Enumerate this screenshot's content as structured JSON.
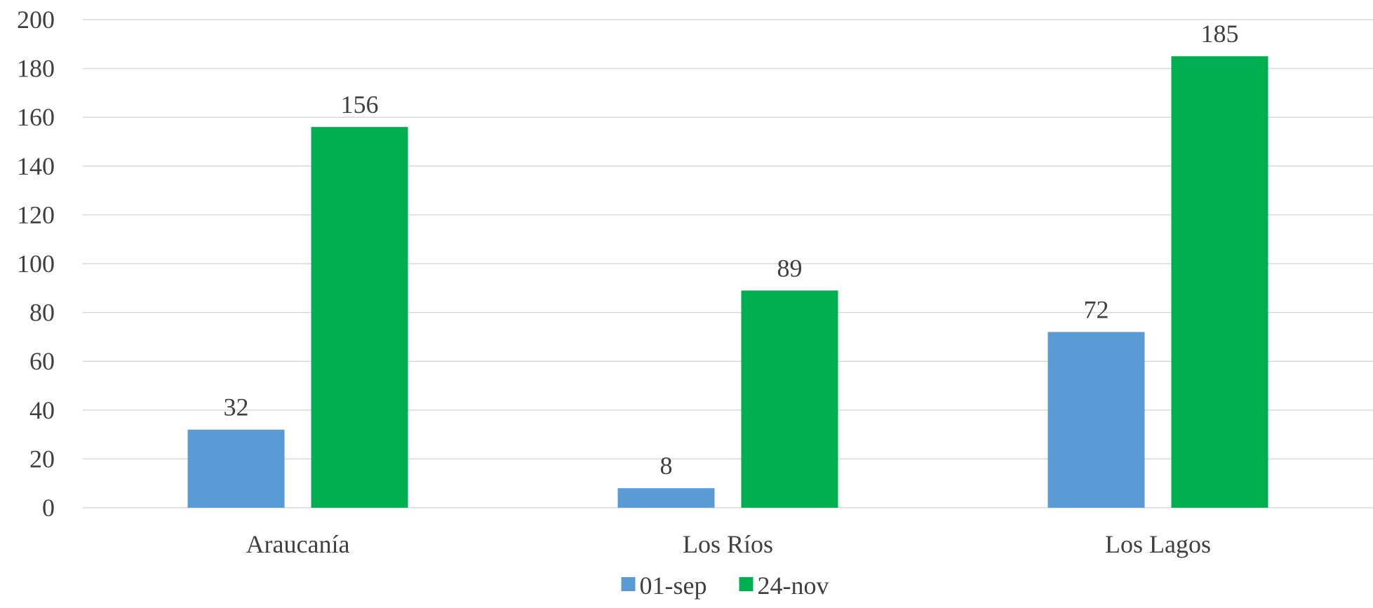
{
  "chart_data": {
    "type": "bar",
    "categories": [
      "Araucanía",
      "Los Ríos",
      "Los Lagos"
    ],
    "series": [
      {
        "name": "01-sep",
        "values": [
          32,
          8,
          72
        ],
        "color": "#5b9bd5"
      },
      {
        "name": "24-nov",
        "values": [
          156,
          89,
          185
        ],
        "color": "#00b050"
      }
    ],
    "title": "",
    "xlabel": "",
    "ylabel": "",
    "ylim": [
      0,
      200
    ],
    "yticks": [
      0,
      20,
      40,
      60,
      80,
      100,
      120,
      140,
      160,
      180,
      200
    ],
    "grid": true,
    "legend_position": "bottom"
  }
}
